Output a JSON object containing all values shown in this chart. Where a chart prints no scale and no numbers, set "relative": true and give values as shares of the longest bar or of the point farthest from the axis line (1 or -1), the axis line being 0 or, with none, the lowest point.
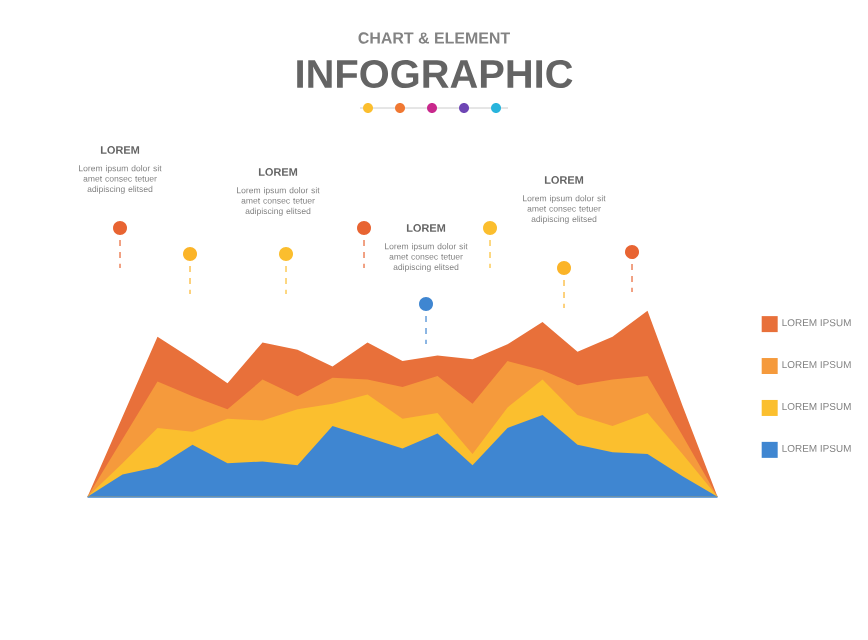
{
  "chart_data": {
    "type": "area",
    "relative": true,
    "subtitle": "CHART & ELEMENT",
    "title": "INFOGRAPHIC",
    "categories": [
      null,
      null,
      null,
      null,
      null,
      null,
      null,
      null,
      null,
      null,
      null,
      null,
      null,
      null,
      null,
      null,
      null,
      null,
      null
    ],
    "series": [
      {
        "name": "LOREM IPSUM",
        "color": "#e8703a",
        "values": [
          0,
          0.43,
          0.86,
          0.74,
          0.61,
          0.83,
          0.79,
          0.7,
          0.83,
          0.73,
          0.76,
          0.74,
          0.82,
          0.94,
          0.78,
          0.86,
          1,
          0.49,
          0
        ]
      },
      {
        "name": "LOREM IPSUM",
        "color": "#f59a3c",
        "values": [
          0,
          0.31,
          0.62,
          0.54,
          0.47,
          0.63,
          0.54,
          0.64,
          0.63,
          0.59,
          0.65,
          0.5,
          0.73,
          0.68,
          0.6,
          0.63,
          0.65,
          0.33,
          0
        ]
      },
      {
        "name": "LOREM IPSUM",
        "color": "#fbbf2e",
        "values": [
          0,
          0.18,
          0.37,
          0.35,
          0.42,
          0.41,
          0.47,
          0.5,
          0.55,
          0.42,
          0.45,
          0.23,
          0.48,
          0.63,
          0.44,
          0.38,
          0.45,
          0.23,
          0
        ]
      },
      {
        "name": "LOREM IPSUM",
        "color": "#3f86d1",
        "values": [
          0,
          0.12,
          0.16,
          0.28,
          0.18,
          0.19,
          0.17,
          0.38,
          0.32,
          0.26,
          0.34,
          0.17,
          0.37,
          0.44,
          0.28,
          0.24,
          0.23,
          0.11,
          0
        ]
      }
    ],
    "annotations": [
      "LOREM",
      "Lorem ipsum dolor sit amet consec tetuer adipiscing elitsed",
      "LOREM",
      "Lorem ipsum dolor sit amet consec tetuer adipiscing elitsed",
      "LOREM",
      "Lorem ipsum dolor sit amet consec tetuer adipiscing elitsed",
      "LOREM",
      "Lorem ipsum dolor sit amet consec tetuer adipiscing elitsed"
    ],
    "legend": "right"
  }
}
